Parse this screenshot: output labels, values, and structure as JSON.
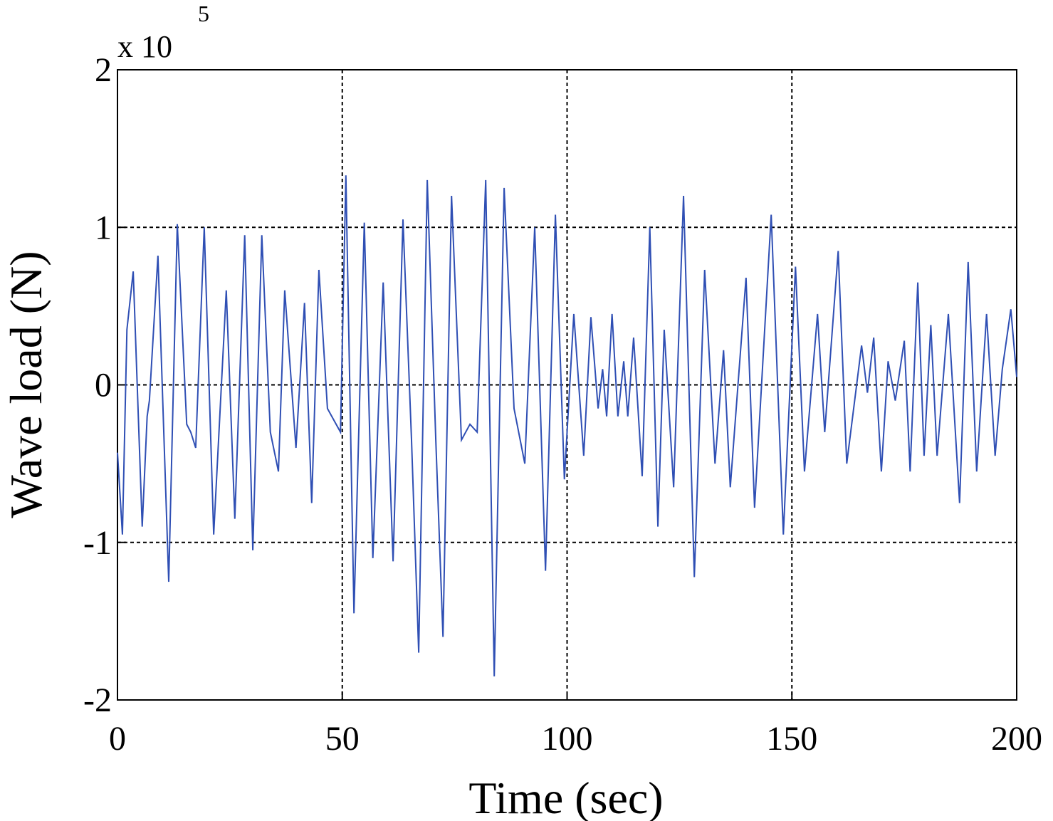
{
  "chart_data": {
    "type": "line",
    "x_label": "Time (sec)",
    "y_label": "Wave load (N)",
    "y_scale_label": "x 10",
    "y_scale_exponent": "5",
    "xlim": [
      0,
      200
    ],
    "xticks": [
      0,
      50,
      100,
      150,
      200
    ],
    "ylim": [
      -2,
      2
    ],
    "yticks": [
      -2,
      -1,
      0,
      1,
      2
    ],
    "grid": true,
    "x": [
      0,
      1.1,
      2.1,
      3.5,
      5.5,
      6.6,
      7.1,
      9,
      11.4,
      13.3,
      15.4,
      16.3,
      17.4,
      19.3,
      21.4,
      24.2,
      26.1,
      28.3,
      30.1,
      32.1,
      34,
      35.8,
      37.2,
      39.7,
      41.6,
      43.2,
      44.8,
      46.7,
      49.6,
      50.8,
      52.6,
      54.9,
      56.8,
      59.1,
      61.3,
      63.5,
      65.4,
      67,
      68.9,
      70.8,
      72.4,
      74.3,
      76.5,
      78.4,
      80,
      81.9,
      83.8,
      86,
      88.2,
      90.6,
      92.8,
      95.2,
      97.4,
      99.4,
      101.5,
      103.7,
      105.3,
      106.9,
      107.9,
      108.8,
      110,
      111.3,
      112.6,
      113.5,
      114.8,
      116.7,
      118.4,
      120.2,
      121.6,
      123.7,
      125.9,
      128.3,
      130.6,
      132.9,
      134.8,
      136.3,
      139.8,
      141.7,
      145.4,
      148.1,
      150.8,
      152.8,
      155.7,
      157.3,
      160.3,
      162.2,
      165.5,
      166.8,
      168.2,
      169.9,
      171.4,
      173,
      175,
      176.3,
      178,
      179.4,
      180.9,
      182.3,
      184.8,
      187.3,
      189.2,
      191.1,
      193.3,
      195.2,
      196.8,
      198.7,
      200
    ],
    "series": [
      {
        "name": "Wave load",
        "color": "#2f4fb4",
        "values": [
          -0.43,
          -0.95,
          0.35,
          0.72,
          -0.9,
          -0.2,
          -0.1,
          0.82,
          -1.25,
          1.02,
          -0.25,
          -0.3,
          -0.4,
          1.0,
          -0.95,
          0.6,
          -0.85,
          0.95,
          -1.05,
          0.95,
          -0.3,
          -0.55,
          0.6,
          -0.4,
          0.52,
          -0.75,
          0.73,
          -0.15,
          -0.3,
          1.33,
          -1.45,
          1.03,
          -1.1,
          0.65,
          -1.12,
          1.05,
          -0.35,
          -1.7,
          1.3,
          -0.35,
          -1.6,
          1.2,
          -0.35,
          -0.25,
          -0.3,
          1.3,
          -1.85,
          1.25,
          -0.15,
          -0.5,
          1.0,
          -1.18,
          1.08,
          -0.6,
          0.45,
          -0.45,
          0.43,
          -0.15,
          0.1,
          -0.2,
          0.45,
          -0.2,
          0.15,
          -0.2,
          0.3,
          -0.58,
          1.0,
          -0.9,
          0.35,
          -0.65,
          1.2,
          -1.22,
          0.73,
          -0.5,
          0.22,
          -0.65,
          0.68,
          -0.78,
          1.08,
          -0.95,
          0.75,
          -0.55,
          0.45,
          -0.3,
          0.85,
          -0.5,
          0.25,
          -0.05,
          0.3,
          -0.55,
          0.15,
          -0.1,
          0.28,
          -0.55,
          0.65,
          -0.45,
          0.38,
          -0.45,
          0.45,
          -0.75,
          0.78,
          -0.55,
          0.45,
          -0.45,
          0.1,
          0.48,
          0.05
        ]
      }
    ]
  }
}
